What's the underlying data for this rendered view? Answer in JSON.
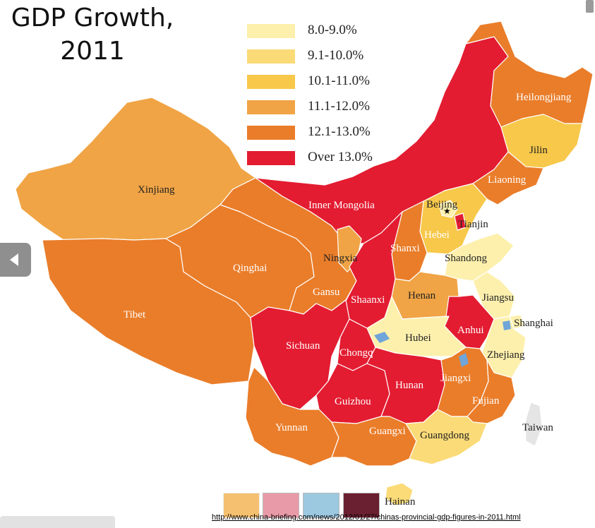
{
  "title_line1": "GDP Growth,",
  "title_line2": "2011",
  "colors": {
    "c1": "#fdf0ad",
    "c2": "#fbdb78",
    "c3": "#f7c84a",
    "c4": "#f0a445",
    "c5": "#ea7d2a",
    "c6": "#e31c31",
    "neutral": "#e5e5e5",
    "water": "#6fa5d8"
  },
  "legend": [
    {
      "label": "8.0-9.0%",
      "color": "#fdf0ad"
    },
    {
      "label": "9.1-10.0%",
      "color": "#fbdb78"
    },
    {
      "label": "10.1-11.0%",
      "color": "#f7c84a"
    },
    {
      "label": "11.1-12.0%",
      "color": "#f0a445"
    },
    {
      "label": "12.1-13.0%",
      "color": "#ea7d2a"
    },
    {
      "label": "Over 13.0%",
      "color": "#e31c31"
    }
  ],
  "provinces": {
    "xinjiang": "Xinjiang",
    "tibet": "Tibet",
    "qinghai": "Qinghai",
    "gansu": "Gansu",
    "inner_mongolia": "Inner Mongolia",
    "ningxia": "Ningxia",
    "shaanxi": "Shaanxi",
    "shanxi": "Shanxi",
    "sichuan": "Sichuan",
    "chongqing": "Chongq",
    "guizhou": "Guizhou",
    "yunnan": "Yunnan",
    "guangxi": "Guangxi",
    "guangdong": "Guangdong",
    "hainan": "Hainan",
    "hunan": "Hunan",
    "hubei": "Hubei",
    "henan": "Henan",
    "anhui": "Anhui",
    "jiangxi": "Jiangxi",
    "fujian": "Fujian",
    "zhejiang": "Zhejiang",
    "jiangsu": "Jiangsu",
    "shanghai": "Shanghai",
    "shandong": "Shandong",
    "hebei": "Hebei",
    "beijing": "Beijing",
    "tianjin": "Tianjin",
    "liaoning": "Liaoning",
    "jilin": "Jilin",
    "heilongjiang": "Heilongjiang",
    "taiwan": "Taiwan"
  },
  "source_url": "http://www.china-briefing.com/news/2012/01/27/chinas-provincial-gdp-figures-in-2011.html",
  "nav": {
    "back_icon": "chevron-left-icon"
  }
}
